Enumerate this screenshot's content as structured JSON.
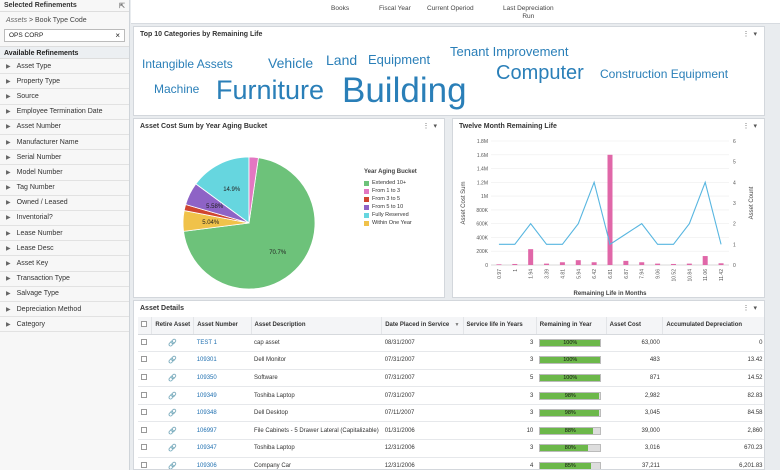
{
  "sidebar": {
    "selected_title": "Selected Refinements",
    "crumb_root": "Assets",
    "crumb_sep": ">",
    "crumb_leaf": "Book Type Code",
    "chip_value": "OPS CORP",
    "chip_remove": "×",
    "available_title": "Available Refinements",
    "items": [
      "Asset Type",
      "Property Type",
      "Source",
      "Employee Termination Date",
      "Asset Number",
      "Manufacturer Name",
      "Serial Number",
      "Model Number",
      "Tag Number",
      "Owned / Leased",
      "Inventorial?",
      "Lease Number",
      "Lease Desc",
      "Asset Key",
      "Transaction Type",
      "Salvage Type",
      "Depreciation Method",
      "Category"
    ]
  },
  "topbar": {
    "labels": [
      "Books",
      "Fiscal Year",
      "Current Operiod",
      "Last Depreciation",
      "Run"
    ]
  },
  "wordcloud": {
    "title": "Top 10 Categories by Remaining Life",
    "words": [
      "Intangible Assets",
      "Vehicle",
      "Land",
      "Equipment",
      "Tenant Improvement",
      "Computer",
      "Construction Equipment",
      "Machine",
      "Furniture",
      "Building"
    ]
  },
  "pie_panel": {
    "title": "Asset Cost Sum by Year Aging Bucket",
    "legend_title": "Year Aging Bucket",
    "legend": [
      {
        "label": "Extended 10+",
        "color": "#6dc27a"
      },
      {
        "label": "From 1 to 3",
        "color": "#e377c2"
      },
      {
        "label": "From 3 to 5",
        "color": "#d0452f"
      },
      {
        "label": "From 5 to 10",
        "color": "#8e63c6"
      },
      {
        "label": "Fully Reserved",
        "color": "#66d6df"
      },
      {
        "label": "Within One Year",
        "color": "#f0c24a"
      }
    ]
  },
  "line_panel": {
    "title": "Twelve Month Remaining Life"
  },
  "chart_data": [
    {
      "type": "pie",
      "title": "Asset Cost Sum by Year Aging Bucket",
      "legend_title": "Year Aging Bucket",
      "slices": [
        {
          "label": "Extended 10+",
          "value": 70.7,
          "color": "#6dc27a"
        },
        {
          "label": "Within One Year",
          "value": 5.04,
          "color": "#f0c24a"
        },
        {
          "label": "From 3 to 5",
          "value": 1.5,
          "color": "#d0452f"
        },
        {
          "label": "From 5 to 10",
          "value": 5.58,
          "color": "#8e63c6"
        },
        {
          "label": "Fully Reserved",
          "value": 14.9,
          "color": "#66d6df"
        },
        {
          "label": "From 1 to 3",
          "value": 2.28,
          "color": "#e377c2"
        }
      ],
      "data_labels": [
        "70.7%",
        "5.04%",
        "5.58%",
        "14.9%"
      ],
      "legend_position": "right"
    },
    {
      "type": "bar",
      "title": "Twelve Month Remaining Life",
      "xlabel": "Remaining Life in Months",
      "ylabel_left": "Asset Cost Sum",
      "ylabel_right": "Asset Count",
      "categories": [
        "0.97",
        "1",
        "1.94",
        "3.39",
        "4.81",
        "5.94",
        "6.42",
        "6.81",
        "6.87",
        "7.94",
        "9.06",
        "10.52",
        "10.84",
        "11.06",
        "11.42"
      ],
      "y_left_ticks": [
        "0",
        "200K",
        "400K",
        "600K",
        "800K",
        "1M",
        "1.2M",
        "1.4M",
        "1.6M",
        "1.8M"
      ],
      "y_right_ticks": [
        "0",
        "1",
        "2",
        "3",
        "4",
        "5",
        "6"
      ],
      "ylim_left": [
        0,
        1800000
      ],
      "ylim_right": [
        0,
        6
      ],
      "series": [
        {
          "name": "Asset Cost Sum",
          "kind": "bar",
          "color": "#e067a8",
          "values": [
            10000,
            15000,
            230000,
            20000,
            40000,
            70000,
            40000,
            1600000,
            60000,
            40000,
            20000,
            15000,
            20000,
            130000,
            25000
          ]
        },
        {
          "name": "Asset Count",
          "kind": "line",
          "color": "#58b6e0",
          "values": [
            1,
            1,
            2,
            1,
            1,
            2,
            4,
            1,
            1.5,
            2,
            1,
            1,
            2,
            4,
            1
          ]
        }
      ]
    }
  ],
  "table": {
    "title": "Asset Details",
    "headers": [
      "",
      "Retire Asset",
      "Asset Number",
      "Asset Description",
      "Date Placed in Service",
      "Service life in Years",
      "Remaining in Year",
      "Asset Cost",
      "Accumulated Depreciation"
    ],
    "rows": [
      {
        "asset_number": "TEST 1",
        "desc": "cap asset",
        "date": "08/31/2007",
        "life": "3",
        "remaining": 1.0,
        "remaining_label": "100%",
        "cost": "63,000",
        "accum": "0"
      },
      {
        "asset_number": "109301",
        "desc": "Dell Monitor",
        "date": "07/31/2007",
        "life": "3",
        "remaining": 1.0,
        "remaining_label": "100%",
        "cost": "483",
        "accum": "13.42"
      },
      {
        "asset_number": "109350",
        "desc": "Software",
        "date": "07/31/2007",
        "life": "5",
        "remaining": 1.0,
        "remaining_label": "100%",
        "cost": "871",
        "accum": "14.52"
      },
      {
        "asset_number": "109349",
        "desc": "Toshiba Laptop",
        "date": "07/31/2007",
        "life": "3",
        "remaining": 0.98,
        "remaining_label": "98%",
        "cost": "2,982",
        "accum": "82.83"
      },
      {
        "asset_number": "109348",
        "desc": "Dell Desktop",
        "date": "07/11/2007",
        "life": "3",
        "remaining": 0.98,
        "remaining_label": "98%",
        "cost": "3,045",
        "accum": "84.58"
      },
      {
        "asset_number": "106997",
        "desc": "File Cabinets - 5 Drawer Lateral (Capitalizable)",
        "date": "01/31/2006",
        "life": "10",
        "remaining": 0.88,
        "remaining_label": "88%",
        "cost": "39,000",
        "accum": "2,860"
      },
      {
        "asset_number": "109347",
        "desc": "Toshiba Laptop",
        "date": "12/31/2006",
        "life": "3",
        "remaining": 0.8,
        "remaining_label": "80%",
        "cost": "3,016",
        "accum": "670.23"
      },
      {
        "asset_number": "109306",
        "desc": "Company Car",
        "date": "12/31/2006",
        "life": "4",
        "remaining": 0.85,
        "remaining_label": "85%",
        "cost": "37,211",
        "accum": "6,201.83"
      }
    ]
  }
}
